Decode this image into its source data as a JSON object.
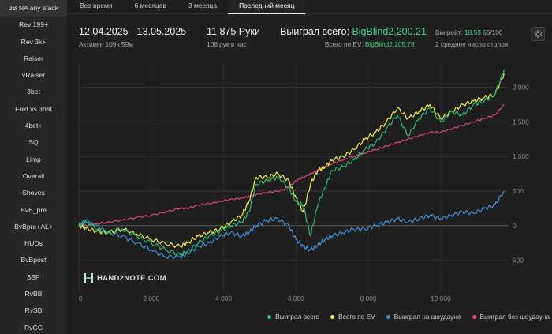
{
  "sidebar": {
    "items": [
      {
        "label": "3B NA any stack"
      },
      {
        "label": "Rev 199+"
      },
      {
        "label": "Rev 3k+"
      },
      {
        "label": "Raiser"
      },
      {
        "label": "vRaiser"
      },
      {
        "label": "3bet"
      },
      {
        "label": "Fold vs 3bet"
      },
      {
        "label": "4bet+"
      },
      {
        "label": "SQ"
      },
      {
        "label": "Limp"
      },
      {
        "label": "Overall"
      },
      {
        "label": "Shoves"
      },
      {
        "label": "BvB_pre"
      },
      {
        "label": "BvBpre+AL+"
      },
      {
        "label": "HUDs"
      },
      {
        "label": "BvBpost"
      },
      {
        "label": "3BP"
      },
      {
        "label": "RvBB"
      },
      {
        "label": "RvSB"
      },
      {
        "label": "RvCC"
      }
    ]
  },
  "tabs": [
    {
      "label": "Все время"
    },
    {
      "label": "6 месяцев"
    },
    {
      "label": "3 месяца"
    },
    {
      "label": "Последний месяц"
    }
  ],
  "stats": {
    "date_range": "12.04.2025 - 13.05.2025",
    "active": "Активен 109ч 59м",
    "hands": "11 875 Руки",
    "hands_per_hour": "108 рук в час",
    "won_label": "Выиграл всего:",
    "won_value": "BigBlind2,200.21",
    "ev_label": "Всего по EV:",
    "ev_value": "BigBlind2,205.78",
    "winrate_label": "Винрейт:",
    "winrate_value": "18.53",
    "winrate_hands": "66/100",
    "avg_tables": "2 среднее число столов"
  },
  "watermark": "HAND2NOTE.COM",
  "colors": {
    "won": "#2eb872",
    "ev": "#f0ec4a",
    "showdown": "#3f8fd8",
    "non_showdown": "#e0457b",
    "accent_green": "#3fd28b"
  },
  "icons": {
    "settings": "gear-icon"
  },
  "chart_data": {
    "type": "line",
    "x_ticks": [
      0,
      2000,
      4000,
      6000,
      8000,
      10000
    ],
    "x_tick_labels": [
      "0",
      "2 000",
      "4 000",
      "6 000",
      "8 000",
      "10 000"
    ],
    "y_ticks": [
      -500,
      0,
      500,
      1000,
      1500,
      2000
    ],
    "y_tick_labels": [
      "500",
      "0",
      "500",
      "1 000",
      "1 500",
      "2 000"
    ],
    "xlim": [
      0,
      11875
    ],
    "ylim": [
      -950,
      2350
    ],
    "grid": true,
    "legend_position": "bottom-right",
    "series": [
      {
        "name": "Выиграл всего",
        "color": "#2eb872",
        "x": [
          0,
          200,
          500,
          800,
          1200,
          1600,
          2000,
          2400,
          2800,
          3000,
          3300,
          3600,
          3900,
          4200,
          4500,
          4700,
          4900,
          5200,
          5500,
          5800,
          6000,
          6200,
          6400,
          6600,
          6800,
          7000,
          7300,
          7600,
          7900,
          8200,
          8500,
          8800,
          9100,
          9400,
          9700,
          10000,
          10300,
          10600,
          10900,
          11200,
          11500,
          11750
        ],
        "y": [
          0,
          80,
          -50,
          -100,
          -50,
          -150,
          -250,
          -350,
          -420,
          -380,
          -250,
          -150,
          -80,
          0,
          50,
          200,
          600,
          650,
          700,
          550,
          350,
          300,
          -150,
          300,
          550,
          800,
          850,
          950,
          1100,
          1200,
          1400,
          1600,
          1300,
          1550,
          1700,
          1500,
          1650,
          1600,
          1750,
          1800,
          1900,
          2250
        ]
      },
      {
        "name": "Всего по EV",
        "color": "#f0ec4a",
        "x": [
          0,
          200,
          500,
          800,
          1200,
          1600,
          2000,
          2400,
          2800,
          3000,
          3300,
          3600,
          3900,
          4200,
          4500,
          4700,
          4900,
          5200,
          5500,
          5800,
          6000,
          6200,
          6400,
          6600,
          6800,
          7000,
          7300,
          7600,
          7900,
          8200,
          8500,
          8800,
          9100,
          9400,
          9700,
          10000,
          10300,
          10600,
          10900,
          11200,
          11500,
          11750
        ],
        "y": [
          0,
          -40,
          -80,
          -100,
          -50,
          -120,
          -200,
          -260,
          -300,
          -250,
          -150,
          -100,
          -50,
          50,
          150,
          350,
          700,
          700,
          750,
          650,
          400,
          200,
          600,
          800,
          850,
          950,
          1000,
          1100,
          1250,
          1350,
          1500,
          1700,
          1550,
          1650,
          1750,
          1550,
          1650,
          1750,
          1800,
          1850,
          1900,
          2200
        ]
      },
      {
        "name": "Выиграл на шоудауне",
        "color": "#3f8fd8",
        "x": [
          0,
          200,
          500,
          800,
          1200,
          1600,
          2000,
          2400,
          2800,
          3000,
          3300,
          3600,
          3900,
          4200,
          4500,
          4700,
          4900,
          5200,
          5500,
          5800,
          6000,
          6200,
          6400,
          6600,
          6800,
          7000,
          7300,
          7600,
          7900,
          8200,
          8500,
          8800,
          9100,
          9400,
          9700,
          10000,
          10300,
          10600,
          10900,
          11200,
          11500,
          11750
        ],
        "y": [
          0,
          50,
          0,
          -100,
          -150,
          -250,
          -350,
          -450,
          -450,
          -400,
          -300,
          -250,
          -150,
          -100,
          -150,
          -100,
          0,
          80,
          100,
          0,
          -200,
          -300,
          -350,
          -280,
          -200,
          -150,
          -100,
          -50,
          -50,
          0,
          50,
          100,
          50,
          100,
          150,
          100,
          150,
          200,
          180,
          250,
          300,
          500
        ]
      },
      {
        "name": "Выиграл без шоудауна",
        "color": "#e0457b",
        "x": [
          0,
          200,
          500,
          800,
          1200,
          1600,
          2000,
          2400,
          2800,
          3000,
          3300,
          3600,
          3900,
          4200,
          4500,
          4700,
          4900,
          5200,
          5500,
          5800,
          6000,
          6200,
          6400,
          6600,
          6800,
          7000,
          7300,
          7600,
          7900,
          8200,
          8500,
          8800,
          9100,
          9400,
          9700,
          10000,
          10300,
          10600,
          10900,
          11200,
          11500,
          11750
        ],
        "y": [
          0,
          0,
          30,
          50,
          80,
          120,
          150,
          200,
          250,
          250,
          300,
          320,
          350,
          380,
          400,
          420,
          450,
          480,
          500,
          550,
          650,
          700,
          750,
          800,
          850,
          900,
          950,
          1000,
          1050,
          1100,
          1150,
          1200,
          1250,
          1300,
          1350,
          1350,
          1400,
          1450,
          1500,
          1550,
          1600,
          1750
        ]
      }
    ]
  }
}
